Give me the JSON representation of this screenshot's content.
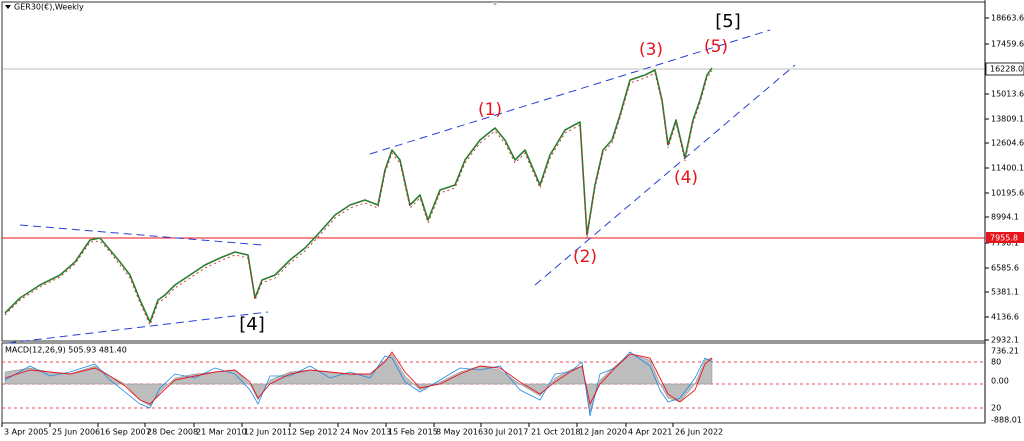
{
  "header": {
    "title": "GER30(€),Weekly"
  },
  "price_axis": {
    "labels": [
      "18663.6",
      "17459.6",
      "15013.6",
      "13809.1",
      "12604.6",
      "11400.1",
      "10195.6",
      "8994.1",
      "7790.1",
      "6585.6",
      "5381.1",
      "4136.6",
      "2932.1"
    ],
    "last_price": "16228.0",
    "level_label": "7955.8"
  },
  "annotations": {
    "wave1": "(1)",
    "wave2": "(2)",
    "wave3": "(3)",
    "wave4": "(4)",
    "wave5": "(5)",
    "major5": "[5]",
    "major4": "[4]"
  },
  "macd": {
    "title": "MACD(12,26,9) 505.93 481.40",
    "labels": [
      "736.21",
      "80",
      "0.00",
      "20",
      "-888.01"
    ]
  },
  "date_axis": {
    "labels": [
      "3 Apr 2005",
      "25 Jun 2006",
      "16 Sep 2007",
      "28 Dec 2008",
      "21 Mar 2010",
      "12 Jun 2011",
      "2 Sep 2012",
      "24 Nov 2013",
      "15 Feb 2015",
      "8 May 2016",
      "30 Jul 2017",
      "21 Oct 2018",
      "12 Jan 2020",
      "4 Apr 2021",
      "26 Jun 2022"
    ]
  }
}
